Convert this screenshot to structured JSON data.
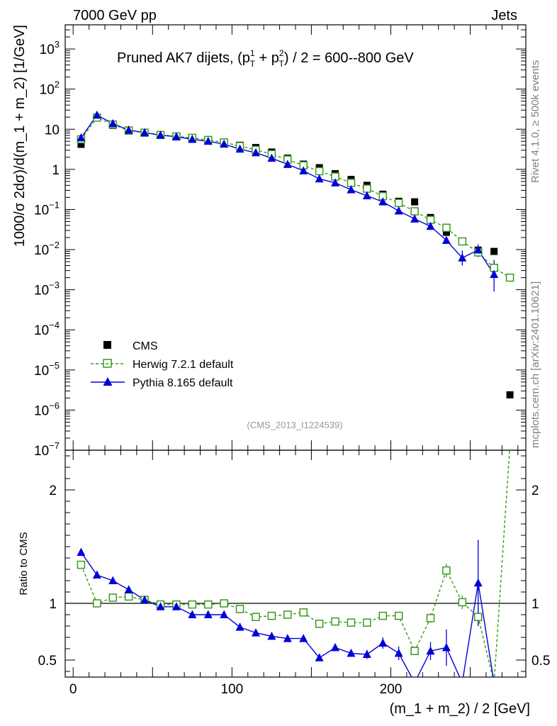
{
  "header": {
    "left": "7000 GeV pp",
    "right": "Jets"
  },
  "side_labels": {
    "rivet": "Rivet 4.1.0, ≥ 500k events",
    "mcplots": "mcplots.cern.ch [arXiv:2401.10621]"
  },
  "plot_title": {
    "prefix": "Pruned AK7 dijets, (p",
    "t1_sup": "1",
    "t1_sub": "T",
    "mid": " + p",
    "t2_sup": "2",
    "t2_sub": "T",
    "suffix": ") / 2 = 600--800 GeV"
  },
  "y_label_main": "1000/σ  2dσ)/d(m_1 + m_2) [1/GeV]",
  "y_label_ratio": "Ratio to CMS",
  "x_label": "(m_1 + m_2) / 2 [GeV]",
  "reference_tag": "(CMS_2013_I1224539)",
  "colors": {
    "cms": "#000000",
    "herwig": "#3a9a1e",
    "pythia": "#0000d8"
  },
  "chart_data": {
    "type": "scatter",
    "title": "Pruned AK7 dijets, (pT1 + pT2) / 2 = 600--800 GeV",
    "xlabel": "(m_1 + m_2) / 2 [GeV]",
    "ylabel": "1000/σ 2dσ)/d(m_1 + m_2) [1/GeV]",
    "xlim": [
      -5,
      285
    ],
    "ylim": [
      1e-07,
      4000
    ],
    "yscale": "log",
    "x_ticks": [
      "0",
      "100",
      "200"
    ],
    "y_ticks": [
      "10^-7",
      "10^-6",
      "10^-5",
      "10^-4",
      "10^-3",
      "10^-2",
      "10^-1",
      "1",
      "10",
      "10^2",
      "10^3"
    ],
    "legend": [
      "CMS",
      "Herwig 7.2.1 default",
      "Pythia 8.165 default"
    ],
    "legend_position": "bottom-left",
    "x": [
      5,
      15,
      25,
      35,
      45,
      55,
      65,
      75,
      85,
      95,
      105,
      115,
      125,
      135,
      145,
      155,
      165,
      175,
      185,
      195,
      205,
      215,
      225,
      235,
      245,
      255,
      265,
      275
    ],
    "series": [
      {
        "name": "CMS",
        "values": [
          4.2,
          19.5,
          12.5,
          9.0,
          8.0,
          7.3,
          6.7,
          6.2,
          5.5,
          4.7,
          4.0,
          3.5,
          2.7,
          1.9,
          1.35,
          1.1,
          0.78,
          0.56,
          0.4,
          0.24,
          0.16,
          0.155,
          0.063,
          0.027,
          0.016,
          0.0097,
          0.009,
          2.4e-06
        ]
      },
      {
        "name": "Herwig 7.2.1 default",
        "values": [
          5.6,
          19.5,
          13.1,
          9.3,
          8.2,
          7.2,
          6.6,
          6.1,
          5.4,
          4.7,
          3.8,
          3.05,
          2.4,
          1.75,
          1.25,
          0.9,
          0.66,
          0.46,
          0.33,
          0.215,
          0.145,
          0.09,
          0.055,
          0.035,
          0.016,
          0.0085,
          0.0035,
          0.002
        ]
      },
      {
        "name": "Pythia 8.165 default",
        "values": [
          6.1,
          22.5,
          13.8,
          9.5,
          8.2,
          7.1,
          6.5,
          5.6,
          5.0,
          4.25,
          3.2,
          2.6,
          1.9,
          1.33,
          0.92,
          0.58,
          0.46,
          0.31,
          0.22,
          0.155,
          0.092,
          0.058,
          0.038,
          0.017,
          0.0062,
          0.0098,
          0.0024
        ]
      }
    ],
    "ratio": {
      "ylabel": "Ratio to CMS",
      "ylim": [
        0.35,
        2.35
      ],
      "y_ticks": [
        "0.5",
        "1",
        "2"
      ],
      "reference_line": 1,
      "herwig": [
        1.34,
        1.0,
        1.05,
        1.06,
        1.03,
        0.99,
        0.99,
        0.99,
        0.99,
        1.0,
        0.95,
        0.88,
        0.89,
        0.9,
        0.92,
        0.82,
        0.84,
        0.83,
        0.83,
        0.89,
        0.89,
        0.58,
        0.87,
        1.29,
        1.01,
        0.88,
        0.3,
        2.4
      ],
      "herwig_err": [
        0.03,
        0.01,
        0.01,
        0.01,
        0.01,
        0.01,
        0.01,
        0.01,
        0.01,
        0.01,
        0.01,
        0.01,
        0.01,
        0.01,
        0.02,
        0.02,
        0.02,
        0.02,
        0.02,
        0.02,
        0.03,
        0.03,
        0.04,
        0.06,
        0.06,
        0.08,
        0,
        0
      ],
      "pythia": [
        1.45,
        1.25,
        1.2,
        1.12,
        1.03,
        0.97,
        0.97,
        0.9,
        0.9,
        0.9,
        0.79,
        0.74,
        0.71,
        0.69,
        0.69,
        0.52,
        0.61,
        0.56,
        0.55,
        0.65,
        0.56,
        0.3,
        0.58,
        0.61,
        0.3,
        1.18,
        0.3
      ],
      "pythia_err": [
        0.02,
        0.01,
        0.01,
        0.01,
        0.01,
        0.01,
        0.01,
        0.01,
        0.01,
        0.01,
        0.01,
        0.01,
        0.01,
        0.01,
        0.02,
        0.02,
        0.03,
        0.03,
        0.04,
        0.05,
        0.06,
        0,
        0.08,
        0.16,
        0,
        0.38,
        0
      ]
    }
  }
}
